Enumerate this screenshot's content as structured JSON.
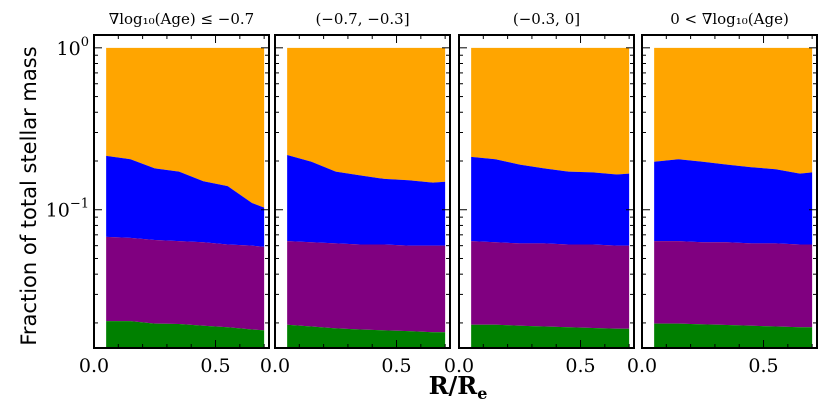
{
  "chart_data": {
    "type": "area",
    "layout": "1x4 panels, shared y axis",
    "y_scale": "log",
    "ylim": [
      0.014,
      1.2
    ],
    "xlim": [
      0.0,
      0.72
    ],
    "ylabel": "Fraction of total stellar mass",
    "xlabel": "R/R",
    "xlabel_sub": "e",
    "y_ticks": [
      {
        "value": 1.0,
        "base": "10",
        "exp": "0"
      },
      {
        "value": 0.1,
        "base": "10",
        "exp": "−1"
      }
    ],
    "x_ticks": [
      {
        "value": 0.0,
        "label": "0.0"
      },
      {
        "value": 0.5,
        "label": "0.5"
      }
    ],
    "colors": {
      "layer1": "#ffa500",
      "layer2": "#0000ff",
      "layer3": "#800080",
      "layer4": "#008000"
    },
    "panels": [
      {
        "title": "∇log₁₀(Age) ≤ −0.7",
        "x": [
          0.05,
          0.15,
          0.25,
          0.35,
          0.45,
          0.55,
          0.65,
          0.7
        ],
        "boundaries": {
          "top": [
            1.0,
            1.0,
            1.0,
            1.0,
            1.0,
            1.0,
            1.0,
            1.0
          ],
          "layer1_bottom": [
            0.215,
            0.205,
            0.18,
            0.172,
            0.15,
            0.14,
            0.11,
            0.103
          ],
          "layer2_bottom": [
            0.068,
            0.067,
            0.065,
            0.064,
            0.063,
            0.061,
            0.06,
            0.059
          ],
          "layer3_bottom": [
            0.0205,
            0.0205,
            0.0198,
            0.0197,
            0.0192,
            0.0188,
            0.0182,
            0.018
          ]
        }
      },
      {
        "title": "(−0.7, −0.3]",
        "x": [
          0.05,
          0.15,
          0.25,
          0.35,
          0.45,
          0.55,
          0.65,
          0.7
        ],
        "boundaries": {
          "top": [
            1.0,
            1.0,
            1.0,
            1.0,
            1.0,
            1.0,
            1.0,
            1.0
          ],
          "layer1_bottom": [
            0.218,
            0.198,
            0.172,
            0.163,
            0.155,
            0.152,
            0.147,
            0.149
          ],
          "layer2_bottom": [
            0.064,
            0.063,
            0.062,
            0.061,
            0.061,
            0.06,
            0.06,
            0.06
          ],
          "layer3_bottom": [
            0.0195,
            0.019,
            0.0185,
            0.0182,
            0.018,
            0.0178,
            0.0175,
            0.0175
          ]
        }
      },
      {
        "title": "(−0.3, 0]",
        "x": [
          0.05,
          0.15,
          0.25,
          0.35,
          0.45,
          0.55,
          0.65,
          0.7
        ],
        "boundaries": {
          "top": [
            1.0,
            1.0,
            1.0,
            1.0,
            1.0,
            1.0,
            1.0,
            1.0
          ],
          "layer1_bottom": [
            0.212,
            0.205,
            0.19,
            0.18,
            0.172,
            0.17,
            0.165,
            0.167
          ],
          "layer2_bottom": [
            0.064,
            0.063,
            0.062,
            0.062,
            0.061,
            0.061,
            0.06,
            0.06
          ],
          "layer3_bottom": [
            0.0195,
            0.0195,
            0.0192,
            0.019,
            0.0188,
            0.0186,
            0.0184,
            0.0184
          ]
        }
      },
      {
        "title": "0 < ∇log₁₀(Age)",
        "x": [
          0.05,
          0.15,
          0.25,
          0.35,
          0.45,
          0.55,
          0.65,
          0.7
        ],
        "boundaries": {
          "top": [
            1.0,
            1.0,
            1.0,
            1.0,
            1.0,
            1.0,
            1.0,
            1.0
          ],
          "layer1_bottom": [
            0.198,
            0.205,
            0.198,
            0.19,
            0.183,
            0.178,
            0.167,
            0.17
          ],
          "layer2_bottom": [
            0.064,
            0.064,
            0.063,
            0.063,
            0.062,
            0.062,
            0.061,
            0.061
          ],
          "layer3_bottom": [
            0.0198,
            0.0198,
            0.0196,
            0.0194,
            0.0192,
            0.019,
            0.0188,
            0.0188
          ]
        }
      }
    ]
  }
}
